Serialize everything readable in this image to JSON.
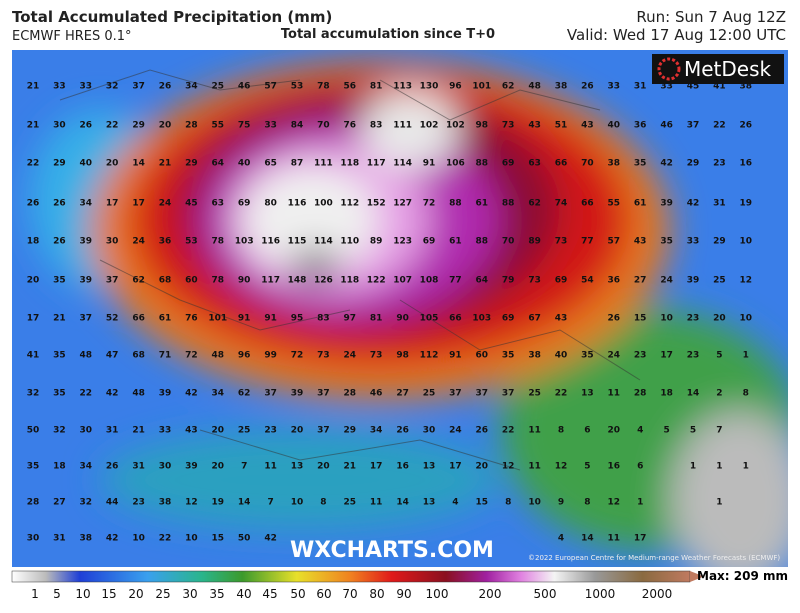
{
  "header": {
    "title": "Total Accumulated Precipitation (mm)",
    "model": "ECMWF HRES 0.1°",
    "subtitle": "Total accumulation since T+0",
    "run": "Run: Sun 7 Aug 12Z",
    "valid": "Valid: Wed 17 Aug 12:00 UTC"
  },
  "logo": "MetDesk",
  "watermark": "WXCHARTS.COM",
  "copyright": "©2022 European Centre for Medium-range Weather Forecasts (ECMWF)",
  "grid": {
    "rows": [
      [
        21,
        33,
        33,
        32,
        37,
        26,
        34,
        25,
        46,
        57,
        53,
        78,
        56,
        81,
        113,
        130,
        96,
        101,
        62,
        48,
        38,
        26,
        33,
        31,
        33,
        45,
        41,
        38
      ],
      [
        21,
        30,
        26,
        22,
        29,
        20,
        28,
        55,
        75,
        33,
        84,
        70,
        76,
        83,
        111,
        102,
        102,
        98,
        73,
        43,
        51,
        43,
        40,
        36,
        46,
        37,
        22,
        26
      ],
      [
        22,
        29,
        40,
        20,
        14,
        21,
        29,
        64,
        40,
        65,
        87,
        111,
        118,
        117,
        114,
        91,
        106,
        88,
        69,
        63,
        66,
        70,
        38,
        35,
        42,
        29,
        23,
        16
      ],
      [
        26,
        26,
        34,
        17,
        17,
        24,
        45,
        63,
        69,
        80,
        116,
        100,
        112,
        152,
        127,
        72,
        88,
        61,
        88,
        62,
        74,
        66,
        55,
        61,
        39,
        42,
        31,
        19
      ],
      [
        18,
        26,
        39,
        30,
        24,
        36,
        53,
        78,
        103,
        116,
        115,
        114,
        110,
        89,
        123,
        69,
        61,
        88,
        70,
        89,
        73,
        77,
        57,
        43,
        35,
        33,
        29,
        10
      ],
      [
        20,
        35,
        39,
        37,
        62,
        68,
        60,
        78,
        90,
        117,
        148,
        126,
        118,
        122,
        107,
        108,
        77,
        64,
        79,
        73,
        69,
        54,
        36,
        27,
        24,
        39,
        25,
        12
      ],
      [
        17,
        21,
        37,
        52,
        66,
        61,
        76,
        101,
        91,
        91,
        95,
        83,
        97,
        81,
        90,
        105,
        66,
        103,
        69,
        67,
        43,
        null,
        26,
        15,
        10,
        23,
        20,
        10
      ],
      [
        41,
        35,
        48,
        47,
        68,
        71,
        72,
        48,
        96,
        99,
        72,
        73,
        24,
        73,
        98,
        112,
        91,
        60,
        35,
        38,
        40,
        35,
        24,
        23,
        17,
        23,
        5,
        1
      ],
      [
        32,
        35,
        22,
        42,
        48,
        39,
        42,
        34,
        62,
        37,
        39,
        37,
        28,
        46,
        27,
        25,
        37,
        37,
        37,
        25,
        22,
        13,
        11,
        28,
        18,
        14,
        2,
        8
      ],
      [
        50,
        32,
        30,
        31,
        21,
        33,
        43,
        20,
        25,
        23,
        20,
        37,
        29,
        34,
        26,
        30,
        24,
        26,
        22,
        11,
        8,
        6,
        20,
        4,
        5,
        5,
        7,
        null
      ],
      [
        35,
        18,
        34,
        26,
        31,
        30,
        39,
        20,
        7,
        11,
        13,
        20,
        21,
        17,
        16,
        13,
        17,
        20,
        12,
        11,
        12,
        5,
        16,
        6,
        null,
        1,
        1,
        1
      ],
      [
        28,
        27,
        32,
        44,
        23,
        38,
        12,
        19,
        14,
        7,
        10,
        8,
        25,
        11,
        14,
        13,
        4,
        15,
        8,
        10,
        9,
        8,
        12,
        1,
        null,
        null,
        1,
        null
      ],
      [
        30,
        31,
        38,
        42,
        10,
        22,
        10,
        15,
        50,
        42,
        null,
        null,
        null,
        null,
        null,
        null,
        null,
        null,
        null,
        null,
        4,
        14,
        11,
        17,
        null,
        null,
        null,
        null
      ]
    ]
  },
  "legend": {
    "labels": [
      1,
      5,
      10,
      15,
      20,
      25,
      30,
      35,
      40,
      45,
      50,
      60,
      70,
      80,
      90,
      100,
      200,
      500,
      1000,
      2000
    ],
    "max": "Max: 209 mm"
  }
}
